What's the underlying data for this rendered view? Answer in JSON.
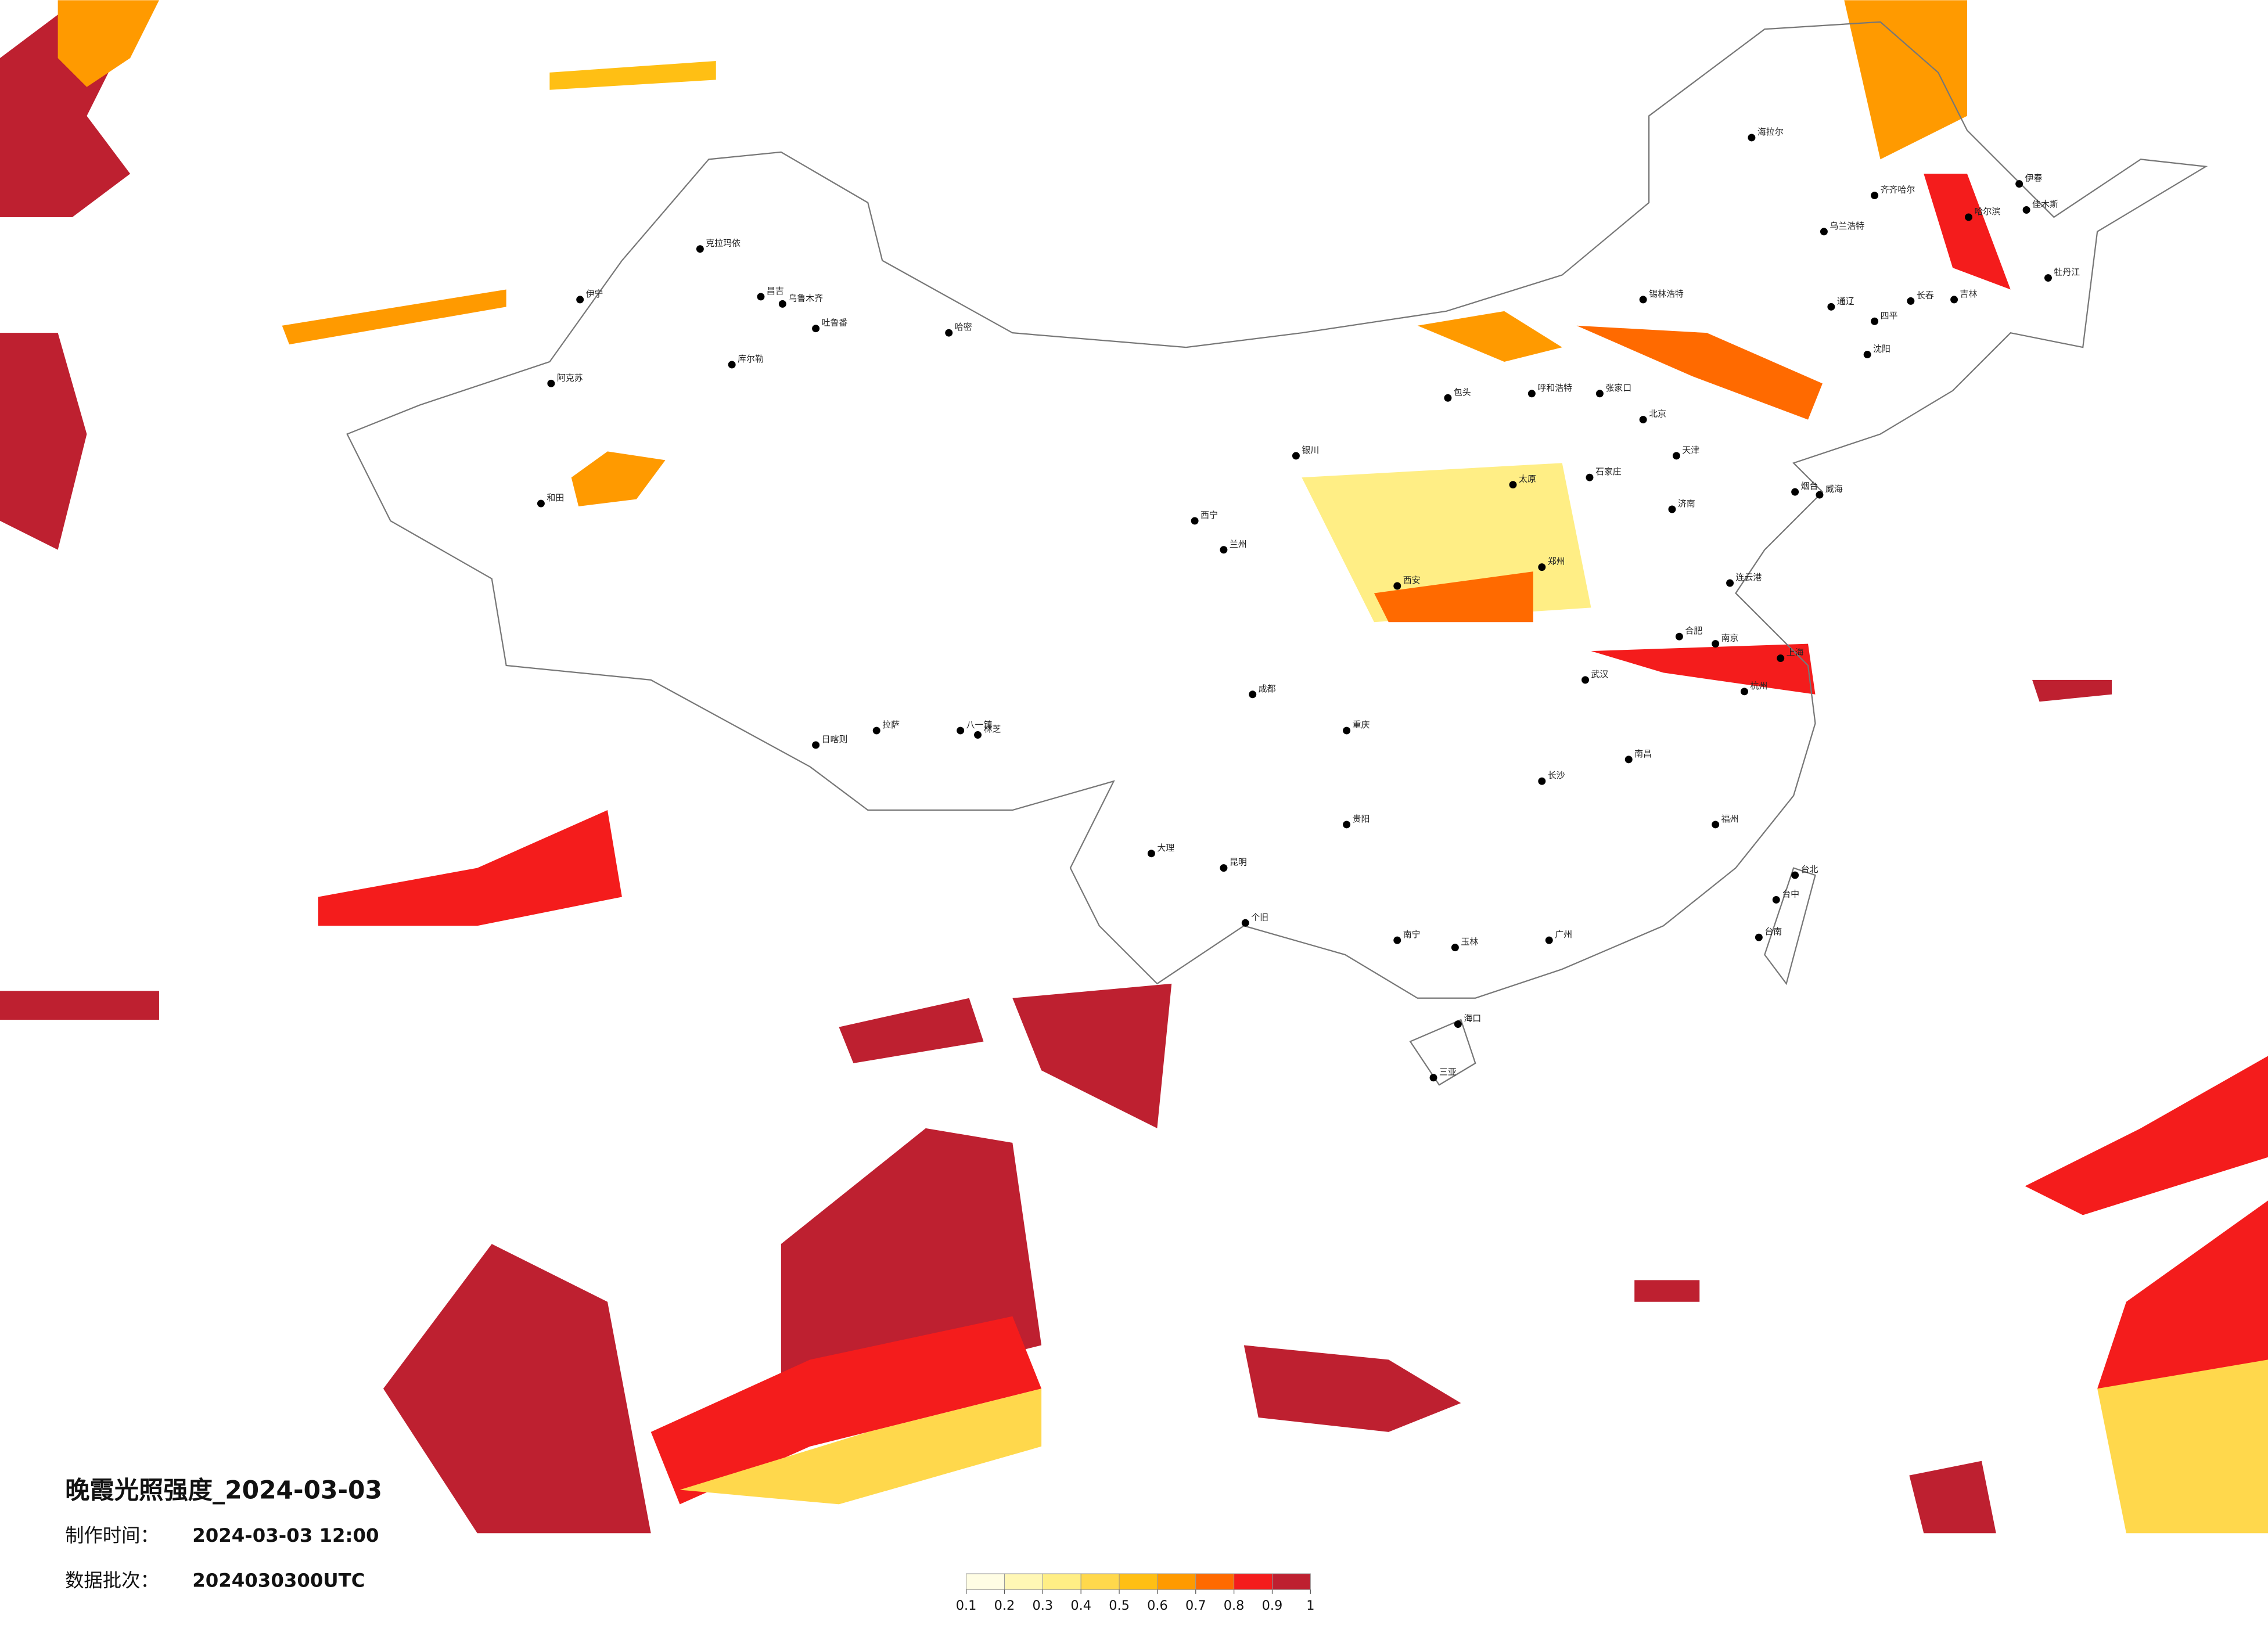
{
  "map": {
    "title": "晚霞光照强度_2024-03-03",
    "made_label": "制作时间：",
    "made_time": "2024-03-03 12:00",
    "batch_label": "数据批次：",
    "batch": "2024030300UTC",
    "colorbar": {
      "ticks": [
        0.1,
        0.2,
        0.3,
        0.4,
        0.5,
        0.6,
        0.7,
        0.8,
        0.9,
        1
      ],
      "colors": [
        "#fffde4",
        "#fff7b5",
        "#ffee85",
        "#ffd84c",
        "#ffbf14",
        "#ff9a00",
        "#ff6a00",
        "#f41c1c",
        "#be2030"
      ]
    },
    "cities": [
      "克拉玛依",
      "昌吉",
      "乌鲁木齐",
      "吐鲁番",
      "哈密",
      "库尔勒",
      "阿克苏",
      "和田",
      "伊宁",
      "拉萨",
      "日喀则",
      "八一镇",
      "林芝",
      "呼和浩特",
      "包头",
      "锡林浩特",
      "张家口",
      "北京",
      "天津",
      "石家庄",
      "太原",
      "济南",
      "郑州",
      "西安",
      "兰州",
      "西宁",
      "银川",
      "成都",
      "重庆",
      "贵阳",
      "昆明",
      "大理",
      "个旧",
      "南宁",
      "玉林",
      "广州",
      "海口",
      "三亚",
      "长沙",
      "南昌",
      "武汉",
      "合肥",
      "南京",
      "上海",
      "杭州",
      "福州",
      "台北",
      "台中",
      "台南",
      "沈阳",
      "长春",
      "吉林",
      "哈尔滨",
      "齐齐哈尔",
      "海拉尔",
      "伊春",
      "佳木斯",
      "牡丹江",
      "乌兰浩特",
      "通辽",
      "四平",
      "烟台",
      "威海",
      "连云港"
    ]
  }
}
